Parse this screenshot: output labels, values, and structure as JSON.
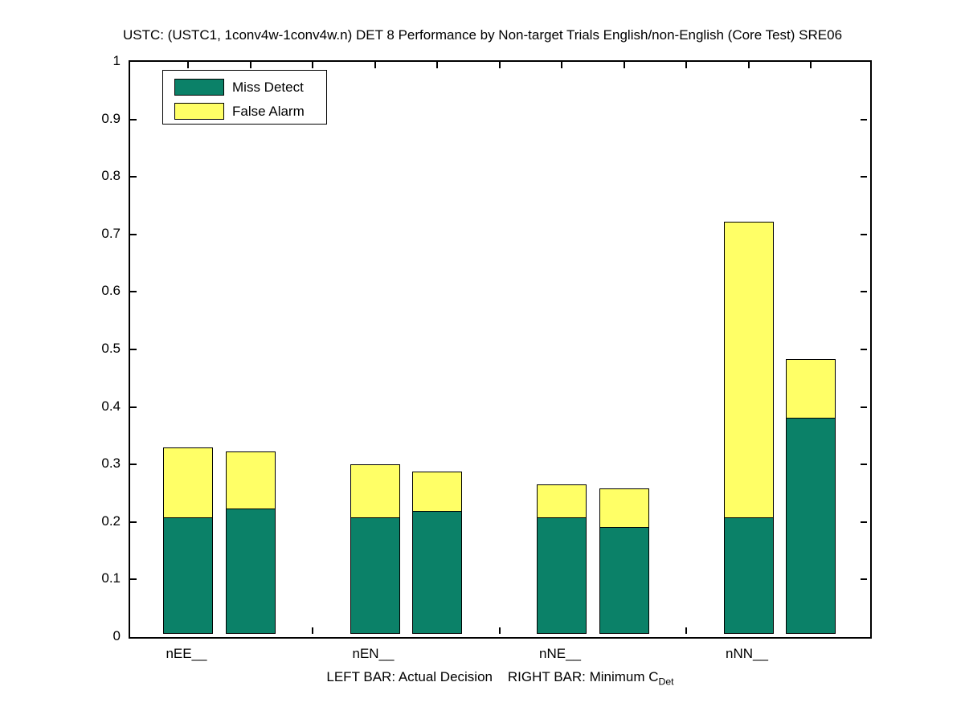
{
  "title": "USTC: (USTC1, 1conv4w-1conv4w.n) DET 8 Performance by Non-target Trials English/non-English (Core Test) SRE06",
  "legend": {
    "items": [
      {
        "label": "Miss Detect",
        "color": "#0b8168"
      },
      {
        "label": "False Alarm",
        "color": "#ffff66"
      }
    ]
  },
  "xlabel": {
    "text": "LEFT BAR: Actual Decision    RIGHT BAR: Minimum C",
    "sub": "Det"
  },
  "chart_data": {
    "type": "bar",
    "stacked": true,
    "title": "USTC: (USTC1, 1conv4w-1conv4w.n) DET 8 Performance by Non-target Trials English/non-English (Core Test) SRE06",
    "categories": [
      "nEE__",
      "nEN__",
      "nNE__",
      "nNN__"
    ],
    "bar_pairs": [
      "Actual Decision (left bar)",
      "Minimum C_Det (right bar)"
    ],
    "series": [
      {
        "name": "Miss Detect",
        "color": "#0b8168",
        "actual": [
          0.202,
          0.202,
          0.202,
          0.202
        ],
        "minimum": [
          0.218,
          0.213,
          0.186,
          0.375
        ]
      },
      {
        "name": "False Alarm",
        "color": "#ffff66",
        "actual": [
          0.122,
          0.092,
          0.058,
          0.515
        ],
        "minimum": [
          0.099,
          0.069,
          0.067,
          0.103
        ]
      }
    ],
    "stack_totals": {
      "actual": [
        0.324,
        0.294,
        0.26,
        0.717
      ],
      "minimum": [
        0.317,
        0.282,
        0.253,
        0.478
      ]
    },
    "ylim": [
      0,
      1
    ],
    "ytick_labels": [
      "0",
      "0.1",
      "0.2",
      "0.3",
      "0.4",
      "0.5",
      "0.6",
      "0.7",
      "0.8",
      "0.9",
      "1"
    ],
    "grid": false,
    "legend_position": "top-left"
  }
}
